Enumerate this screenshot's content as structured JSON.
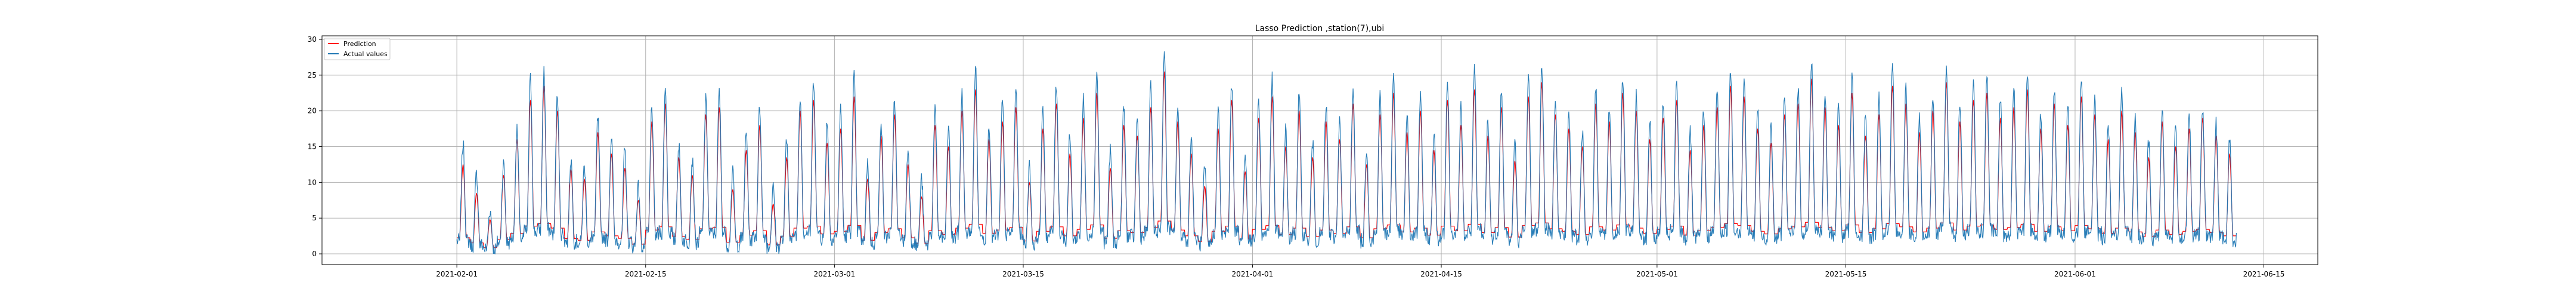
{
  "chart_data": {
    "type": "line",
    "title": "Lasso Prediction ,station(7),ubi",
    "xlabel": "",
    "ylabel": "",
    "x_range": [
      "2021-01-22",
      "2021-06-19"
    ],
    "ylim": [
      -1.5,
      30.5
    ],
    "x_ticks": [
      "2021-02-01",
      "2021-02-15",
      "2021-03-01",
      "2021-03-15",
      "2021-04-01",
      "2021-04-15",
      "2021-05-01",
      "2021-05-15",
      "2021-06-01",
      "2021-06-15"
    ],
    "y_ticks": [
      0,
      5,
      10,
      15,
      20,
      25,
      30
    ],
    "grid": true,
    "legend_position": "upper-left",
    "series": [
      {
        "name": "Prediction",
        "color": "#ff0000"
      },
      {
        "name": "Actual values",
        "color": "#1f77b4"
      }
    ],
    "time_start": "2021-02-01",
    "time_end": "2021-06-12",
    "daily_peaks": [
      [
        12.5,
        15.5
      ],
      [
        8.5,
        11.2
      ],
      [
        4.8,
        6.1
      ],
      [
        11.0,
        12.6
      ],
      [
        16.0,
        17.1
      ],
      [
        21.5,
        24.5
      ],
      [
        23.5,
        25.5
      ],
      [
        20.0,
        22.2
      ],
      [
        11.8,
        13.4
      ],
      [
        10.5,
        12.3
      ],
      [
        17.0,
        19.0
      ],
      [
        14.0,
        16.2
      ],
      [
        12.0,
        14.5
      ],
      [
        7.5,
        9.4
      ],
      [
        18.5,
        20.5
      ],
      [
        21.0,
        23.0
      ],
      [
        13.5,
        15.2
      ],
      [
        11.0,
        13.2
      ],
      [
        19.5,
        21.4
      ],
      [
        20.5,
        22.6
      ],
      [
        9.0,
        11.3
      ],
      [
        14.5,
        16.8
      ],
      [
        18.0,
        20.6
      ],
      [
        7.0,
        9.2
      ],
      [
        13.5,
        15.8
      ],
      [
        20.0,
        22.3
      ],
      [
        21.5,
        24.4
      ],
      [
        15.5,
        18.6
      ],
      [
        17.5,
        20.1
      ],
      [
        22.0,
        24.8
      ],
      [
        10.5,
        12.7
      ],
      [
        16.5,
        18.6
      ],
      [
        19.5,
        21.7
      ],
      [
        12.5,
        14.6
      ],
      [
        8.0,
        10.4
      ],
      [
        18.0,
        20.3
      ],
      [
        15.0,
        17.6
      ],
      [
        20.0,
        22.4
      ],
      [
        23.0,
        26.2
      ],
      [
        16.0,
        18.5
      ],
      [
        18.5,
        21.2
      ],
      [
        20.5,
        23.1
      ],
      [
        10.0,
        12.2
      ],
      [
        17.5,
        19.8
      ],
      [
        21.0,
        23.6
      ],
      [
        14.0,
        16.4
      ],
      [
        19.0,
        21.5
      ],
      [
        22.5,
        25.5
      ],
      [
        12.0,
        14.3
      ],
      [
        18.0,
        20.6
      ],
      [
        16.5,
        18.7
      ],
      [
        20.5,
        23.2
      ],
      [
        25.5,
        28.3
      ],
      [
        18.5,
        20.7
      ],
      [
        14.0,
        16.2
      ],
      [
        9.5,
        11.8
      ],
      [
        17.5,
        20.0
      ],
      [
        21.5,
        24.0
      ],
      [
        11.5,
        13.6
      ],
      [
        19.0,
        21.3
      ],
      [
        22.0,
        24.5
      ],
      [
        15.0,
        17.3
      ],
      [
        20.0,
        22.4
      ],
      [
        13.5,
        15.6
      ],
      [
        18.5,
        20.8
      ],
      [
        16.0,
        18.5
      ],
      [
        21.0,
        23.3
      ],
      [
        12.5,
        14.8
      ],
      [
        19.5,
        22.0
      ],
      [
        22.5,
        25.1
      ],
      [
        17.0,
        19.2
      ],
      [
        20.0,
        22.5
      ],
      [
        14.5,
        16.7
      ],
      [
        21.5,
        24.0
      ],
      [
        18.0,
        20.4
      ],
      [
        23.0,
        25.6
      ],
      [
        16.5,
        18.8
      ],
      [
        20.5,
        22.7
      ],
      [
        13.0,
        15.4
      ],
      [
        22.0,
        24.7
      ],
      [
        24.0,
        26.2
      ],
      [
        19.5,
        21.8
      ],
      [
        17.5,
        19.9
      ],
      [
        15.0,
        17.2
      ],
      [
        21.0,
        23.4
      ],
      [
        18.5,
        20.6
      ],
      [
        22.5,
        24.9
      ],
      [
        20.0,
        22.3
      ],
      [
        16.0,
        18.4
      ],
      [
        19.0,
        21.3
      ],
      [
        21.5,
        23.8
      ],
      [
        14.5,
        16.9
      ],
      [
        18.0,
        20.4
      ],
      [
        20.5,
        22.8
      ],
      [
        23.5,
        25.9
      ],
      [
        22.0,
        24.6
      ],
      [
        17.5,
        20.1
      ],
      [
        15.5,
        17.8
      ],
      [
        19.5,
        21.6
      ],
      [
        21.0,
        23.5
      ],
      [
        24.5,
        26.9
      ],
      [
        20.5,
        22.6
      ],
      [
        18.0,
        20.5
      ],
      [
        22.5,
        24.8
      ],
      [
        16.5,
        18.9
      ],
      [
        19.5,
        22.0
      ],
      [
        23.5,
        25.8
      ],
      [
        21.0,
        23.3
      ],
      [
        17.0,
        19.6
      ],
      [
        20.0,
        22.4
      ],
      [
        24.0,
        26.3
      ],
      [
        18.5,
        21.0
      ],
      [
        21.5,
        23.6
      ],
      [
        22.5,
        25.2
      ],
      [
        19.0,
        21.5
      ],
      [
        20.5,
        22.9
      ],
      [
        23.0,
        25.4
      ],
      [
        17.5,
        19.8
      ],
      [
        21.0,
        23.3
      ],
      [
        18.0,
        20.7
      ],
      [
        22.0,
        24.5
      ],
      [
        19.5,
        21.6
      ],
      [
        16.0,
        18.4
      ],
      [
        20.0,
        22.6
      ],
      [
        17.0,
        19.2
      ],
      [
        13.5,
        15.9
      ],
      [
        18.5,
        20.3
      ],
      [
        15.0,
        17.6
      ],
      [
        17.5,
        19.4
      ],
      [
        19.0,
        20.5
      ],
      [
        16.5,
        18.2
      ],
      [
        14.0,
        15.8
      ]
    ]
  }
}
